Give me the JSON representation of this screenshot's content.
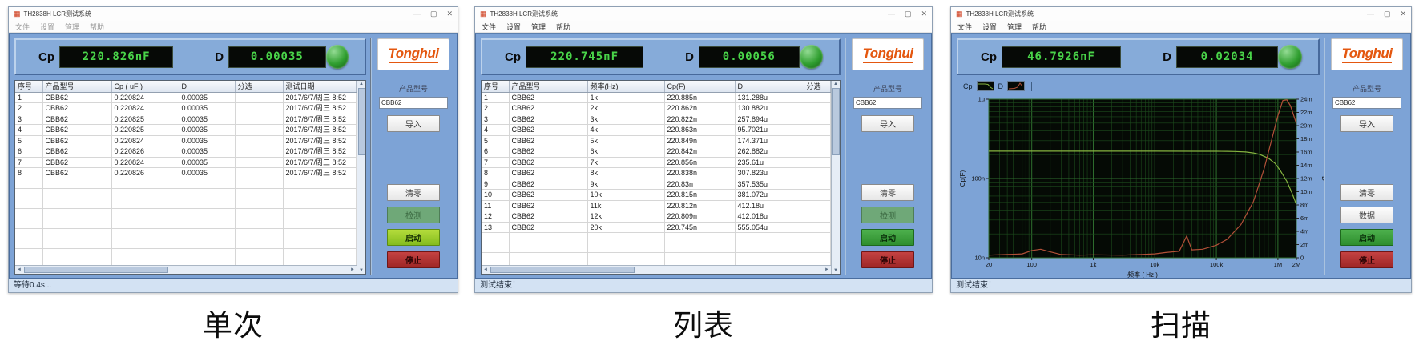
{
  "app": {
    "logo_text": "Tonghui",
    "icons": {
      "app": "▦",
      "minimize": "—",
      "maximize": "▢",
      "close": "✕",
      "scroll_up": "▲",
      "scroll_down": "▼",
      "scroll_left": "◄",
      "scroll_right": "►"
    }
  },
  "captions": [
    "单次",
    "列表",
    "扫描"
  ],
  "windows": [
    {
      "title": "TH2838H LCR测试系统",
      "menus": [
        "文件",
        "设置",
        "管理",
        "帮助"
      ],
      "display": {
        "cp_label": "Cp",
        "cp_value": "220.826nF",
        "d_label": "D",
        "d_value": "0.00035"
      },
      "panel": {
        "label": "产品型号",
        "model_value": "CBB62",
        "buttons": {
          "import": "导入",
          "clear": "清零",
          "measure": "检测",
          "start": "启动",
          "stop": "停止"
        }
      },
      "table": {
        "headers": [
          "序号",
          "产品型号",
          "Cp ( uF )",
          "D",
          "分选",
          "测试日期"
        ],
        "rows": [
          [
            "1",
            "CBB62",
            "0.220824",
            "0.00035",
            "",
            "2017/6/7/周三 8:52"
          ],
          [
            "2",
            "CBB62",
            "0.220824",
            "0.00035",
            "",
            "2017/6/7/周三 8:52"
          ],
          [
            "3",
            "CBB62",
            "0.220825",
            "0.00035",
            "",
            "2017/6/7/周三 8:52"
          ],
          [
            "4",
            "CBB62",
            "0.220825",
            "0.00035",
            "",
            "2017/6/7/周三 8:52"
          ],
          [
            "5",
            "CBB62",
            "0.220824",
            "0.00035",
            "",
            "2017/6/7/周三 8:52"
          ],
          [
            "6",
            "CBB62",
            "0.220826",
            "0.00035",
            "",
            "2017/6/7/周三 8:52"
          ],
          [
            "7",
            "CBB62",
            "0.220824",
            "0.00035",
            "",
            "2017/6/7/周三 8:52"
          ],
          [
            "8",
            "CBB62",
            "0.220826",
            "0.00035",
            "",
            "2017/6/7/周三 8:52"
          ]
        ]
      },
      "status": "等待0.4s..."
    },
    {
      "title": "TH2838H LCR测试系统",
      "menus": [
        "文件",
        "设置",
        "管理",
        "帮助"
      ],
      "display": {
        "cp_label": "Cp",
        "cp_value": "220.745nF",
        "d_label": "D",
        "d_value": "0.00056"
      },
      "panel": {
        "label": "产品型号",
        "model_value": "CBB62",
        "buttons": {
          "import": "导入",
          "clear": "清零",
          "measure": "检测",
          "start": "启动",
          "stop": "停止"
        }
      },
      "table": {
        "headers": [
          "序号",
          "产品型号",
          "频率(Hz)",
          "Cp(F)",
          "D",
          "分选"
        ],
        "rows": [
          [
            "1",
            "CBB62",
            "1k",
            "220.885n",
            "131.288u",
            ""
          ],
          [
            "2",
            "CBB62",
            "2k",
            "220.862n",
            "130.882u",
            ""
          ],
          [
            "3",
            "CBB62",
            "3k",
            "220.822n",
            "257.894u",
            ""
          ],
          [
            "4",
            "CBB62",
            "4k",
            "220.863n",
            "95.7021u",
            ""
          ],
          [
            "5",
            "CBB62",
            "5k",
            "220.849n",
            "174.371u",
            ""
          ],
          [
            "6",
            "CBB62",
            "6k",
            "220.842n",
            "262.882u",
            ""
          ],
          [
            "7",
            "CBB62",
            "7k",
            "220.856n",
            "235.61u",
            ""
          ],
          [
            "8",
            "CBB62",
            "8k",
            "220.838n",
            "307.823u",
            ""
          ],
          [
            "9",
            "CBB62",
            "9k",
            "220.83n",
            "357.535u",
            ""
          ],
          [
            "10",
            "CBB62",
            "10k",
            "220.815n",
            "381.072u",
            ""
          ],
          [
            "11",
            "CBB62",
            "11k",
            "220.812n",
            "412.18u",
            ""
          ],
          [
            "12",
            "CBB62",
            "12k",
            "220.809n",
            "412.018u",
            ""
          ],
          [
            "13",
            "CBB62",
            "20k",
            "220.745n",
            "555.054u",
            ""
          ]
        ]
      },
      "status": "测试结束！"
    },
    {
      "title": "TH2838H LCR测试系统",
      "menus": [
        "文件",
        "设置",
        "管理",
        "帮助"
      ],
      "display": {
        "cp_label": "Cp",
        "cp_value": "46.7926nF",
        "d_label": "D",
        "d_value": "0.02034"
      },
      "panel": {
        "label": "产品型号",
        "model_value": "CBB62",
        "buttons": {
          "import": "导入",
          "clear": "清零",
          "data": "数据",
          "start": "启动",
          "stop": "停止"
        }
      },
      "status": "测试结束！"
    }
  ],
  "chart_data": {
    "type": "line",
    "legend": [
      "Cp",
      "D"
    ],
    "xlabel": "频率 ( Hz )",
    "x_scale": "log",
    "x_range": [
      20,
      2000000
    ],
    "x_tick_values": [
      20,
      100,
      1000,
      10000,
      100000,
      1000000,
      2000000
    ],
    "x_tick_labels": [
      "20",
      "100",
      "1k",
      "10k",
      "100k",
      "1M",
      "2M"
    ],
    "left_axis": {
      "label": "Cp(F)",
      "scale": "log",
      "range": [
        1e-08,
        1e-06
      ],
      "tick_values": [
        1e-06,
        1e-07,
        1e-08
      ],
      "tick_labels": [
        "1u",
        "100n",
        "10n"
      ]
    },
    "right_axis": {
      "label": "D",
      "scale": "linear",
      "range": [
        0,
        0.024
      ],
      "tick_values": [
        0.024,
        0.022,
        0.02,
        0.018,
        0.016,
        0.014,
        0.012,
        0.01,
        0.008,
        0.006,
        0.004,
        0.002,
        0
      ],
      "tick_labels": [
        "24m",
        "22m",
        "20m",
        "18m",
        "16m",
        "14m",
        "12m",
        "10m",
        "8m",
        "6m",
        "4m",
        "2m",
        "0"
      ]
    },
    "colors": {
      "cp": "#86b440",
      "d": "#b25038",
      "grid": "#1c4a1c",
      "grid_major": "#2e6e2e",
      "plot_bg": "#050a05"
    },
    "series": [
      {
        "name": "Cp",
        "axis": "left",
        "color": "#86b440",
        "points": [
          [
            20,
            2.21e-07
          ],
          [
            50,
            2.209e-07
          ],
          [
            100,
            2.209e-07
          ],
          [
            500,
            2.208e-07
          ],
          [
            1000,
            2.208e-07
          ],
          [
            5000,
            2.208e-07
          ],
          [
            10000,
            2.208e-07
          ],
          [
            50000,
            2.207e-07
          ],
          [
            100000,
            2.206e-07
          ],
          [
            150000,
            2.2e-07
          ],
          [
            200000,
            2.19e-07
          ],
          [
            300000,
            2.16e-07
          ],
          [
            400000,
            2.1e-07
          ],
          [
            500000,
            2.02e-07
          ],
          [
            700000,
            1.8e-07
          ],
          [
            900000,
            1.55e-07
          ],
          [
            1100000,
            1.25e-07
          ],
          [
            1400000,
            9.2e-08
          ],
          [
            1700000,
            6.5e-08
          ],
          [
            2000000,
            4.68e-08
          ]
        ]
      },
      {
        "name": "D",
        "axis": "right",
        "color": "#b25038",
        "points": [
          [
            20,
            0.0004
          ],
          [
            40,
            0.0005
          ],
          [
            70,
            0.0006
          ],
          [
            100,
            0.0011
          ],
          [
            140,
            0.0013
          ],
          [
            200,
            0.0009
          ],
          [
            300,
            0.0005
          ],
          [
            600,
            0.0004
          ],
          [
            1000,
            0.00045
          ],
          [
            3000,
            0.0004
          ],
          [
            6000,
            0.0005
          ],
          [
            10000,
            0.0006
          ],
          [
            15000,
            0.0008
          ],
          [
            25000,
            0.001
          ],
          [
            33000,
            0.0033
          ],
          [
            40000,
            0.0012
          ],
          [
            60000,
            0.0013
          ],
          [
            100000,
            0.0019
          ],
          [
            150000,
            0.0028
          ],
          [
            250000,
            0.005
          ],
          [
            400000,
            0.0085
          ],
          [
            600000,
            0.0135
          ],
          [
            800000,
            0.018
          ],
          [
            1000000,
            0.0215
          ],
          [
            1200000,
            0.0238
          ],
          [
            1400000,
            0.0239
          ],
          [
            1600000,
            0.023
          ],
          [
            2000000,
            0.0203
          ]
        ]
      }
    ]
  }
}
